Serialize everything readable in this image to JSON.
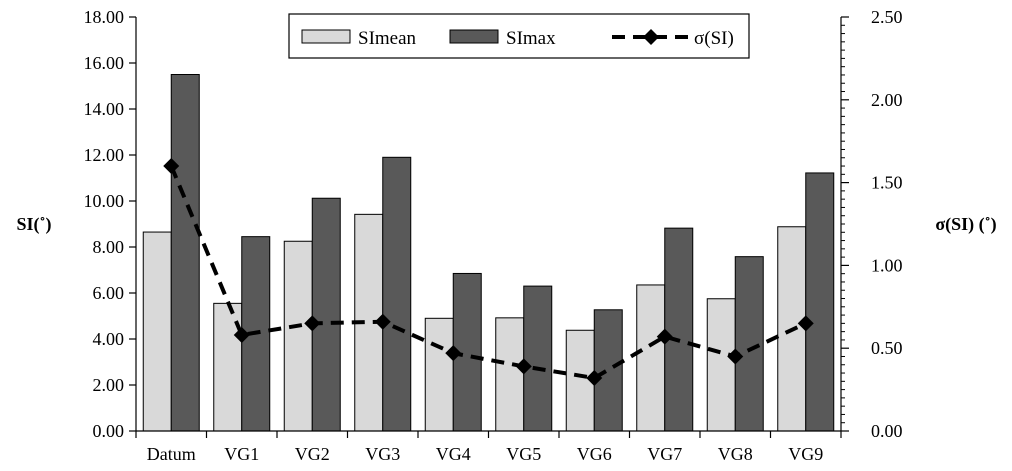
{
  "chart_data": {
    "type": "bar",
    "categories": [
      "Datum",
      "VG1",
      "VG2",
      "VG3",
      "VG4",
      "VG5",
      "VG6",
      "VG7",
      "VG8",
      "VG9"
    ],
    "series": [
      {
        "name": "SImean",
        "type": "bar",
        "axis": "left",
        "color": "#d9d9d9",
        "values": [
          8.65,
          5.55,
          8.25,
          9.42,
          4.9,
          4.92,
          4.38,
          6.35,
          5.75,
          8.88
        ]
      },
      {
        "name": "SImax",
        "type": "bar",
        "axis": "left",
        "color": "#595959",
        "values": [
          15.5,
          8.45,
          10.12,
          11.9,
          6.85,
          6.3,
          5.27,
          8.82,
          7.58,
          11.22
        ]
      },
      {
        "name": "σ(SI)",
        "type": "line",
        "axis": "right",
        "color": "#000000",
        "line_style": "dashed",
        "marker": "diamond",
        "values": [
          1.6,
          0.58,
          0.65,
          0.66,
          0.47,
          0.39,
          0.32,
          0.57,
          0.45,
          0.65
        ]
      }
    ],
    "ylabel": "SI(˚)",
    "y2label": "σ(SI)  (˚)",
    "ylim": [
      0,
      18
    ],
    "y2lim": [
      0,
      2.5
    ],
    "yticks": [
      "0.00",
      "2.00",
      "4.00",
      "6.00",
      "8.00",
      "10.00",
      "12.00",
      "14.00",
      "16.00",
      "18.00"
    ],
    "y2ticks": [
      "0.00",
      "0.50",
      "1.00",
      "1.50",
      "2.00",
      "2.50"
    ],
    "grid": false,
    "legend": {
      "position": "top-center",
      "entries": [
        "SImean",
        "SImax",
        "σ(SI)"
      ]
    }
  }
}
